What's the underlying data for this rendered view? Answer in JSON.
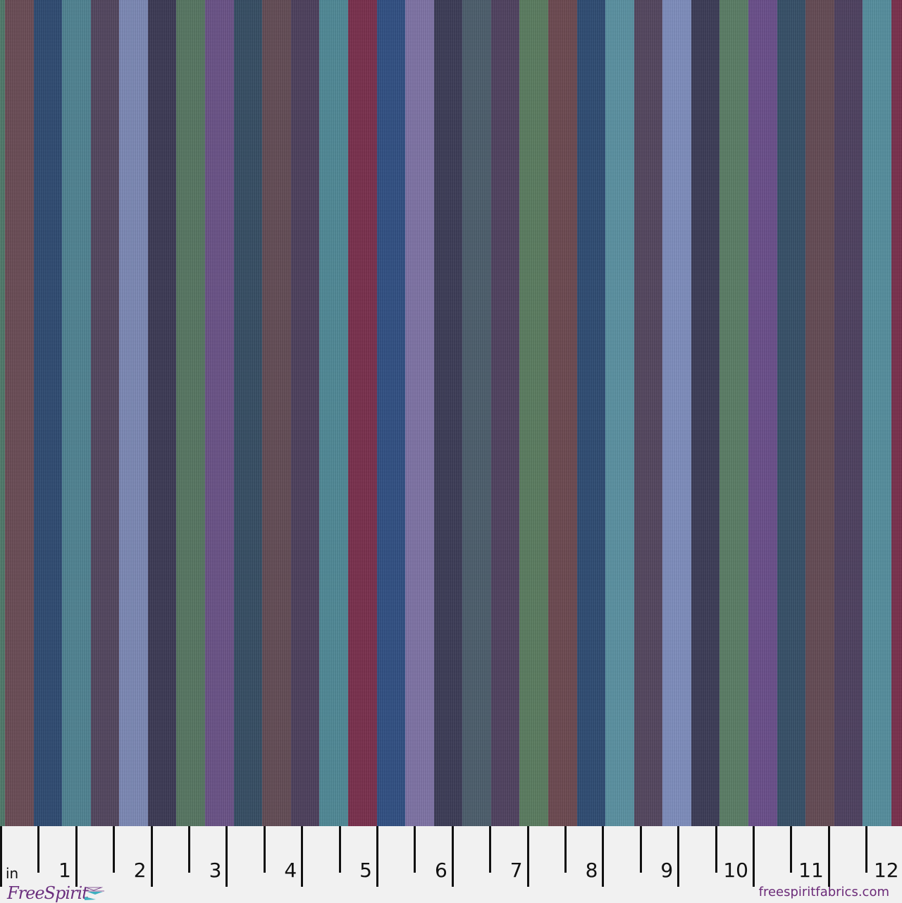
{
  "fabric": {
    "stripe_colors": [
      "#4f7a6a",
      "#6a4b55",
      "#2d4a72",
      "#4f8494",
      "#52455f",
      "#7d8ab8",
      "#3a3854",
      "#567762",
      "#6a5288",
      "#344d64",
      "#634b55",
      "#4c3f5c",
      "#4f8a98",
      "#7a2e4c",
      "#2f4f84",
      "#7f74a8",
      "#3a3a56",
      "#4b5e6c",
      "#4f4160",
      "#5a7d60",
      "#6c4850",
      "#2d4b74",
      "#5a93a4",
      "#53455f",
      "#7f8fc0",
      "#3a3a56",
      "#5a7e66",
      "#6a4e8c",
      "#344f68",
      "#644a54",
      "#4d4060",
      "#5590a0",
      "#7a2e4c"
    ]
  },
  "ruler": {
    "unit_label": "in",
    "numbers": [
      "1",
      "2",
      "3",
      "4",
      "5",
      "6",
      "7",
      "8",
      "9",
      "10",
      "11",
      "12"
    ]
  },
  "branding": {
    "logo_text": "FreeSpirit",
    "website": "freespiritfabrics.com",
    "logo_color": "#6b2f7e"
  }
}
